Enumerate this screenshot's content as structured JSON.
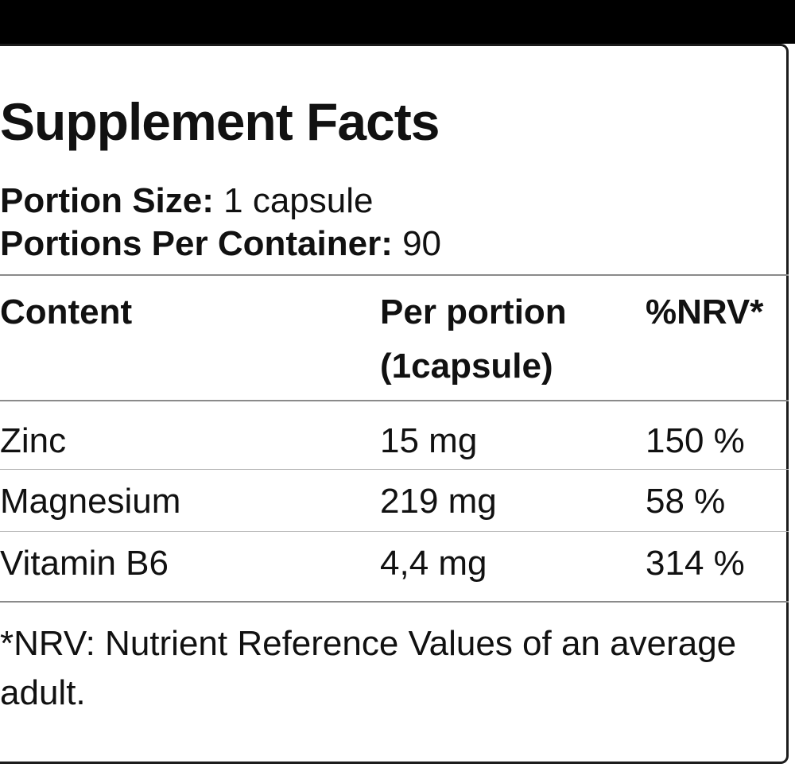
{
  "label": {
    "title": "Supplement Facts",
    "portion_size_label": "Portion Size:",
    "portion_size_value": " 1 capsule",
    "portions_per_container_label": "Portions Per Container:",
    "portions_per_container_value": " 90",
    "columns": {
      "content": "Content",
      "per_portion_line1": "Per portion",
      "per_portion_line2": "(1capsule)",
      "nrv": "%NRV*"
    },
    "rows": [
      {
        "content": "Zinc",
        "per_portion": "15 mg",
        "nrv": "150 %"
      },
      {
        "content": "Magnesium",
        "per_portion": "219 mg",
        "nrv": "58 %"
      },
      {
        "content": "Vitamin B6",
        "per_portion": "4,4 mg",
        "nrv": "314 %"
      }
    ],
    "footnote": "*NRV: Nutrient Reference Values of an average adult."
  }
}
